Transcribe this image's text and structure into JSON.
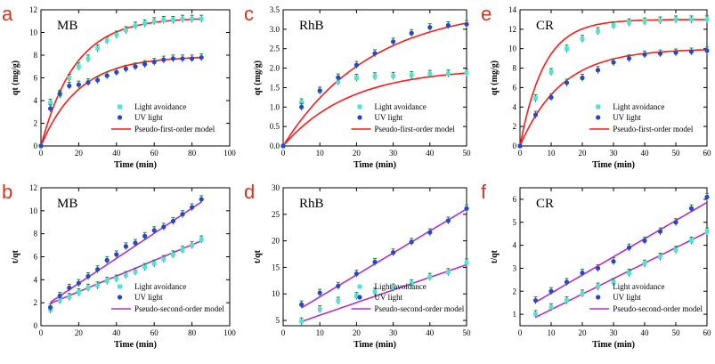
{
  "chart_data": [
    {
      "type": "scatter",
      "panel_letter": "a",
      "dataset": "MB",
      "xlabel": "Time (min)",
      "ylabel": "qt (mg/g)",
      "xlim": [
        0,
        100
      ],
      "ylim": [
        0,
        12
      ],
      "xticks": [
        0,
        20,
        40,
        60,
        80,
        100
      ],
      "yticks": [
        0,
        2,
        4,
        6,
        8,
        10,
        12
      ],
      "legend": [
        "Light avoidance",
        "UV light",
        "Pseudo-first-order model"
      ],
      "series": [
        {
          "name": "Light avoidance",
          "kind": "points",
          "color": "#4fe3d8",
          "x": [
            0,
            5,
            10,
            15,
            20,
            25,
            30,
            35,
            40,
            45,
            50,
            55,
            60,
            65,
            70,
            75,
            80,
            85
          ],
          "y": [
            0,
            3.8,
            4.5,
            6.0,
            7.0,
            7.7,
            8.6,
            9.3,
            9.8,
            10.2,
            10.6,
            10.8,
            11.0,
            11.1,
            11.1,
            11.2,
            11.2,
            11.2
          ]
        },
        {
          "name": "UV light",
          "kind": "points",
          "color": "#2b44c8",
          "x": [
            0,
            5,
            10,
            15,
            20,
            25,
            30,
            35,
            40,
            45,
            50,
            55,
            60,
            65,
            70,
            75,
            80,
            85
          ],
          "y": [
            0,
            3.3,
            4.6,
            5.3,
            5.4,
            5.6,
            5.8,
            6.2,
            6.5,
            6.8,
            7.0,
            7.2,
            7.4,
            7.6,
            7.7,
            7.7,
            7.7,
            7.8
          ]
        },
        {
          "name": "Pseudo-first-order model (Light avoidance fit)",
          "kind": "model",
          "model": "first",
          "qe": 11.3,
          "k": 0.055,
          "x_range": [
            0,
            85
          ]
        },
        {
          "name": "Pseudo-first-order model (UV light fit)",
          "kind": "model",
          "model": "first",
          "qe": 7.9,
          "k": 0.05,
          "x_range": [
            0,
            85
          ]
        }
      ]
    },
    {
      "type": "scatter",
      "panel_letter": "c",
      "dataset": "RhB",
      "xlabel": "Time (min)",
      "ylabel": "qt (mg/g)",
      "xlim": [
        0,
        50
      ],
      "ylim": [
        0,
        3.5
      ],
      "xticks": [
        0,
        10,
        20,
        30,
        40,
        50
      ],
      "yticks": [
        0.0,
        0.5,
        1.0,
        1.5,
        2.0,
        2.5,
        3.0,
        3.5
      ],
      "legend": [
        "Light avoidance",
        "UV light",
        "Pseudo-first-order model"
      ],
      "series": [
        {
          "name": "Light avoidance",
          "kind": "points",
          "color": "#4fe3d8",
          "x": [
            0,
            5,
            10,
            15,
            20,
            25,
            30,
            35,
            40,
            45,
            50
          ],
          "y": [
            0,
            1.12,
            1.42,
            1.65,
            1.75,
            1.79,
            1.8,
            1.82,
            1.85,
            1.86,
            1.88
          ]
        },
        {
          "name": "UV light",
          "kind": "points",
          "color": "#2b44c8",
          "x": [
            0,
            5,
            10,
            15,
            20,
            25,
            30,
            35,
            40,
            45,
            50
          ],
          "y": [
            0,
            1.0,
            1.42,
            1.76,
            2.08,
            2.38,
            2.68,
            2.9,
            3.05,
            3.1,
            3.13
          ]
        },
        {
          "name": "Pseudo-first-order model (Light avoidance fit)",
          "kind": "model",
          "model": "first",
          "qe": 2.0,
          "k": 0.055,
          "x_range": [
            0,
            50
          ]
        },
        {
          "name": "Pseudo-first-order model (UV light fit)",
          "kind": "model",
          "model": "first",
          "qe": 3.6,
          "k": 0.042,
          "x_range": [
            0,
            50
          ]
        }
      ]
    },
    {
      "type": "scatter",
      "panel_letter": "e",
      "dataset": "CR",
      "xlabel": "Time (min)",
      "ylabel": "qt (mg/g)",
      "xlim": [
        0,
        60
      ],
      "ylim": [
        0,
        14
      ],
      "xticks": [
        0,
        10,
        20,
        30,
        40,
        50,
        60
      ],
      "yticks": [
        0,
        2,
        4,
        6,
        8,
        10,
        12,
        14
      ],
      "legend": [
        "Light avoidance",
        "UV light",
        "Pseudo-first-order model"
      ],
      "series": [
        {
          "name": "Light avoidance",
          "kind": "points",
          "color": "#4fe3d8",
          "x": [
            0,
            5,
            10,
            15,
            20,
            25,
            30,
            35,
            40,
            45,
            50,
            55,
            60
          ],
          "y": [
            0,
            4.9,
            7.6,
            10.0,
            11.0,
            11.8,
            12.4,
            12.7,
            12.8,
            12.9,
            13.0,
            13.0,
            13.0
          ]
        },
        {
          "name": "UV light",
          "kind": "points",
          "color": "#2b44c8",
          "x": [
            0,
            5,
            10,
            15,
            20,
            25,
            30,
            35,
            40,
            45,
            50,
            55,
            60
          ],
          "y": [
            0,
            3.2,
            5.0,
            6.5,
            7.0,
            7.8,
            8.6,
            9.0,
            9.4,
            9.5,
            9.6,
            9.7,
            9.8
          ]
        },
        {
          "name": "Pseudo-first-order model (Light avoidance fit)",
          "kind": "model",
          "model": "first",
          "qe": 13.0,
          "k": 0.13,
          "x_range": [
            0,
            60
          ]
        },
        {
          "name": "Pseudo-first-order model (UV light fit)",
          "kind": "model",
          "model": "first",
          "qe": 10.0,
          "k": 0.075,
          "x_range": [
            0,
            60
          ]
        }
      ]
    },
    {
      "type": "scatter",
      "panel_letter": "b",
      "dataset": "MB",
      "xlabel": "Time (min)",
      "ylabel": "t/qt",
      "xlim": [
        0,
        100
      ],
      "ylim": [
        0,
        12
      ],
      "xticks": [
        0,
        20,
        40,
        60,
        80,
        100
      ],
      "yticks": [
        0,
        2,
        4,
        6,
        8,
        10,
        12
      ],
      "legend": [
        "Light avoidance",
        "UV light",
        "Pseudo-second-order model"
      ],
      "series": [
        {
          "name": "Light avoidance",
          "kind": "points",
          "color": "#4fe3d8",
          "x": [
            5,
            10,
            15,
            20,
            25,
            30,
            35,
            40,
            45,
            50,
            55,
            60,
            65,
            70,
            75,
            80,
            85
          ],
          "y": [
            1.4,
            2.2,
            2.5,
            2.9,
            3.3,
            3.5,
            3.9,
            4.1,
            4.4,
            4.7,
            5.1,
            5.4,
            5.8,
            6.2,
            6.6,
            7.0,
            7.5
          ]
        },
        {
          "name": "UV light",
          "kind": "points",
          "color": "#2b44c8",
          "x": [
            5,
            10,
            15,
            20,
            25,
            30,
            35,
            40,
            45,
            50,
            55,
            60,
            65,
            70,
            75,
            80,
            85
          ],
          "y": [
            1.6,
            2.6,
            3.3,
            3.7,
            4.3,
            4.9,
            5.7,
            6.2,
            6.9,
            7.2,
            7.8,
            8.3,
            8.6,
            9.1,
            9.7,
            10.3,
            11.0
          ]
        },
        {
          "name": "Pseudo-second-order model (Light avoidance fit)",
          "kind": "model",
          "model": "line",
          "intercept": 1.6,
          "slope": 0.068,
          "x_range": [
            5,
            85
          ]
        },
        {
          "name": "Pseudo-second-order model (UV light fit)",
          "kind": "model",
          "model": "line",
          "intercept": 1.5,
          "slope": 0.109,
          "x_range": [
            5,
            85
          ]
        }
      ]
    },
    {
      "type": "scatter",
      "panel_letter": "d",
      "dataset": "RhB",
      "xlabel": "Time (min)",
      "ylabel": "t/qt",
      "xlim": [
        0,
        50
      ],
      "ylim": [
        4,
        30
      ],
      "xticks": [
        0,
        10,
        20,
        30,
        40,
        50
      ],
      "yticks": [
        5,
        10,
        15,
        20,
        25,
        30
      ],
      "legend": [
        "Light avoidance",
        "UV light",
        "Pseudo-second-order model"
      ],
      "series": [
        {
          "name": "Light avoidance",
          "kind": "points",
          "color": "#4fe3d8",
          "x": [
            5,
            10,
            15,
            20,
            25,
            30,
            35,
            40,
            45,
            50
          ],
          "y": [
            4.8,
            7.1,
            8.7,
            9.6,
            10.4,
            11.2,
            12.0,
            13.2,
            14.1,
            15.9
          ]
        },
        {
          "name": "UV light",
          "kind": "points",
          "color": "#2b44c8",
          "x": [
            5,
            10,
            15,
            20,
            25,
            30,
            35,
            40,
            45,
            50
          ],
          "y": [
            8.0,
            10.2,
            11.5,
            13.8,
            16.0,
            17.8,
            19.8,
            21.6,
            23.8,
            26.1
          ]
        },
        {
          "name": "Pseudo-second-order model (Light avoidance fit)",
          "kind": "model",
          "model": "line",
          "intercept": 3.6,
          "slope": 0.238,
          "x_range": [
            5,
            50
          ]
        },
        {
          "name": "Pseudo-second-order model (UV light fit)",
          "kind": "model",
          "model": "line",
          "intercept": 5.3,
          "slope": 0.414,
          "x_range": [
            5,
            50
          ]
        }
      ]
    },
    {
      "type": "scatter",
      "panel_letter": "f",
      "dataset": "CR",
      "xlabel": "Time (min)",
      "ylabel": "t/qt",
      "xlim": [
        0,
        60
      ],
      "ylim": [
        0.5,
        6.5
      ],
      "xticks": [
        0,
        10,
        20,
        30,
        40,
        50,
        60
      ],
      "yticks": [
        1,
        2,
        3,
        4,
        5,
        6
      ],
      "legend": [
        "Light avoidance",
        "UV light",
        "Pseudo-second-order model"
      ],
      "series": [
        {
          "name": "Light avoidance",
          "kind": "points",
          "color": "#4fe3d8",
          "x": [
            5,
            10,
            15,
            20,
            25,
            30,
            35,
            40,
            45,
            50,
            55,
            60
          ],
          "y": [
            1.0,
            1.3,
            1.6,
            1.9,
            2.2,
            2.4,
            2.8,
            3.2,
            3.5,
            3.8,
            4.2,
            4.6
          ]
        },
        {
          "name": "UV light",
          "kind": "points",
          "color": "#2b44c8",
          "x": [
            5,
            10,
            15,
            20,
            25,
            30,
            35,
            40,
            45,
            50,
            55,
            60
          ],
          "y": [
            1.6,
            2.0,
            2.4,
            2.8,
            3.0,
            3.3,
            3.9,
            4.2,
            4.6,
            5.0,
            5.6,
            6.1
          ]
        },
        {
          "name": "Pseudo-second-order model (Light avoidance fit)",
          "kind": "model",
          "model": "line",
          "intercept": 0.53,
          "slope": 0.0673,
          "x_range": [
            5,
            60
          ]
        },
        {
          "name": "Pseudo-second-order model (UV light fit)",
          "kind": "model",
          "model": "line",
          "intercept": 1.13,
          "slope": 0.0789,
          "x_range": [
            5,
            60
          ]
        }
      ]
    }
  ],
  "colors": {
    "light_avoidance": "#4fe3d8",
    "uv_light": "#2b44c8",
    "first_order_line": "#ff1a1a",
    "second_order_line": "#b030c8",
    "error_bar": "#1a8a2a",
    "panel_letter": "#e0301e"
  }
}
